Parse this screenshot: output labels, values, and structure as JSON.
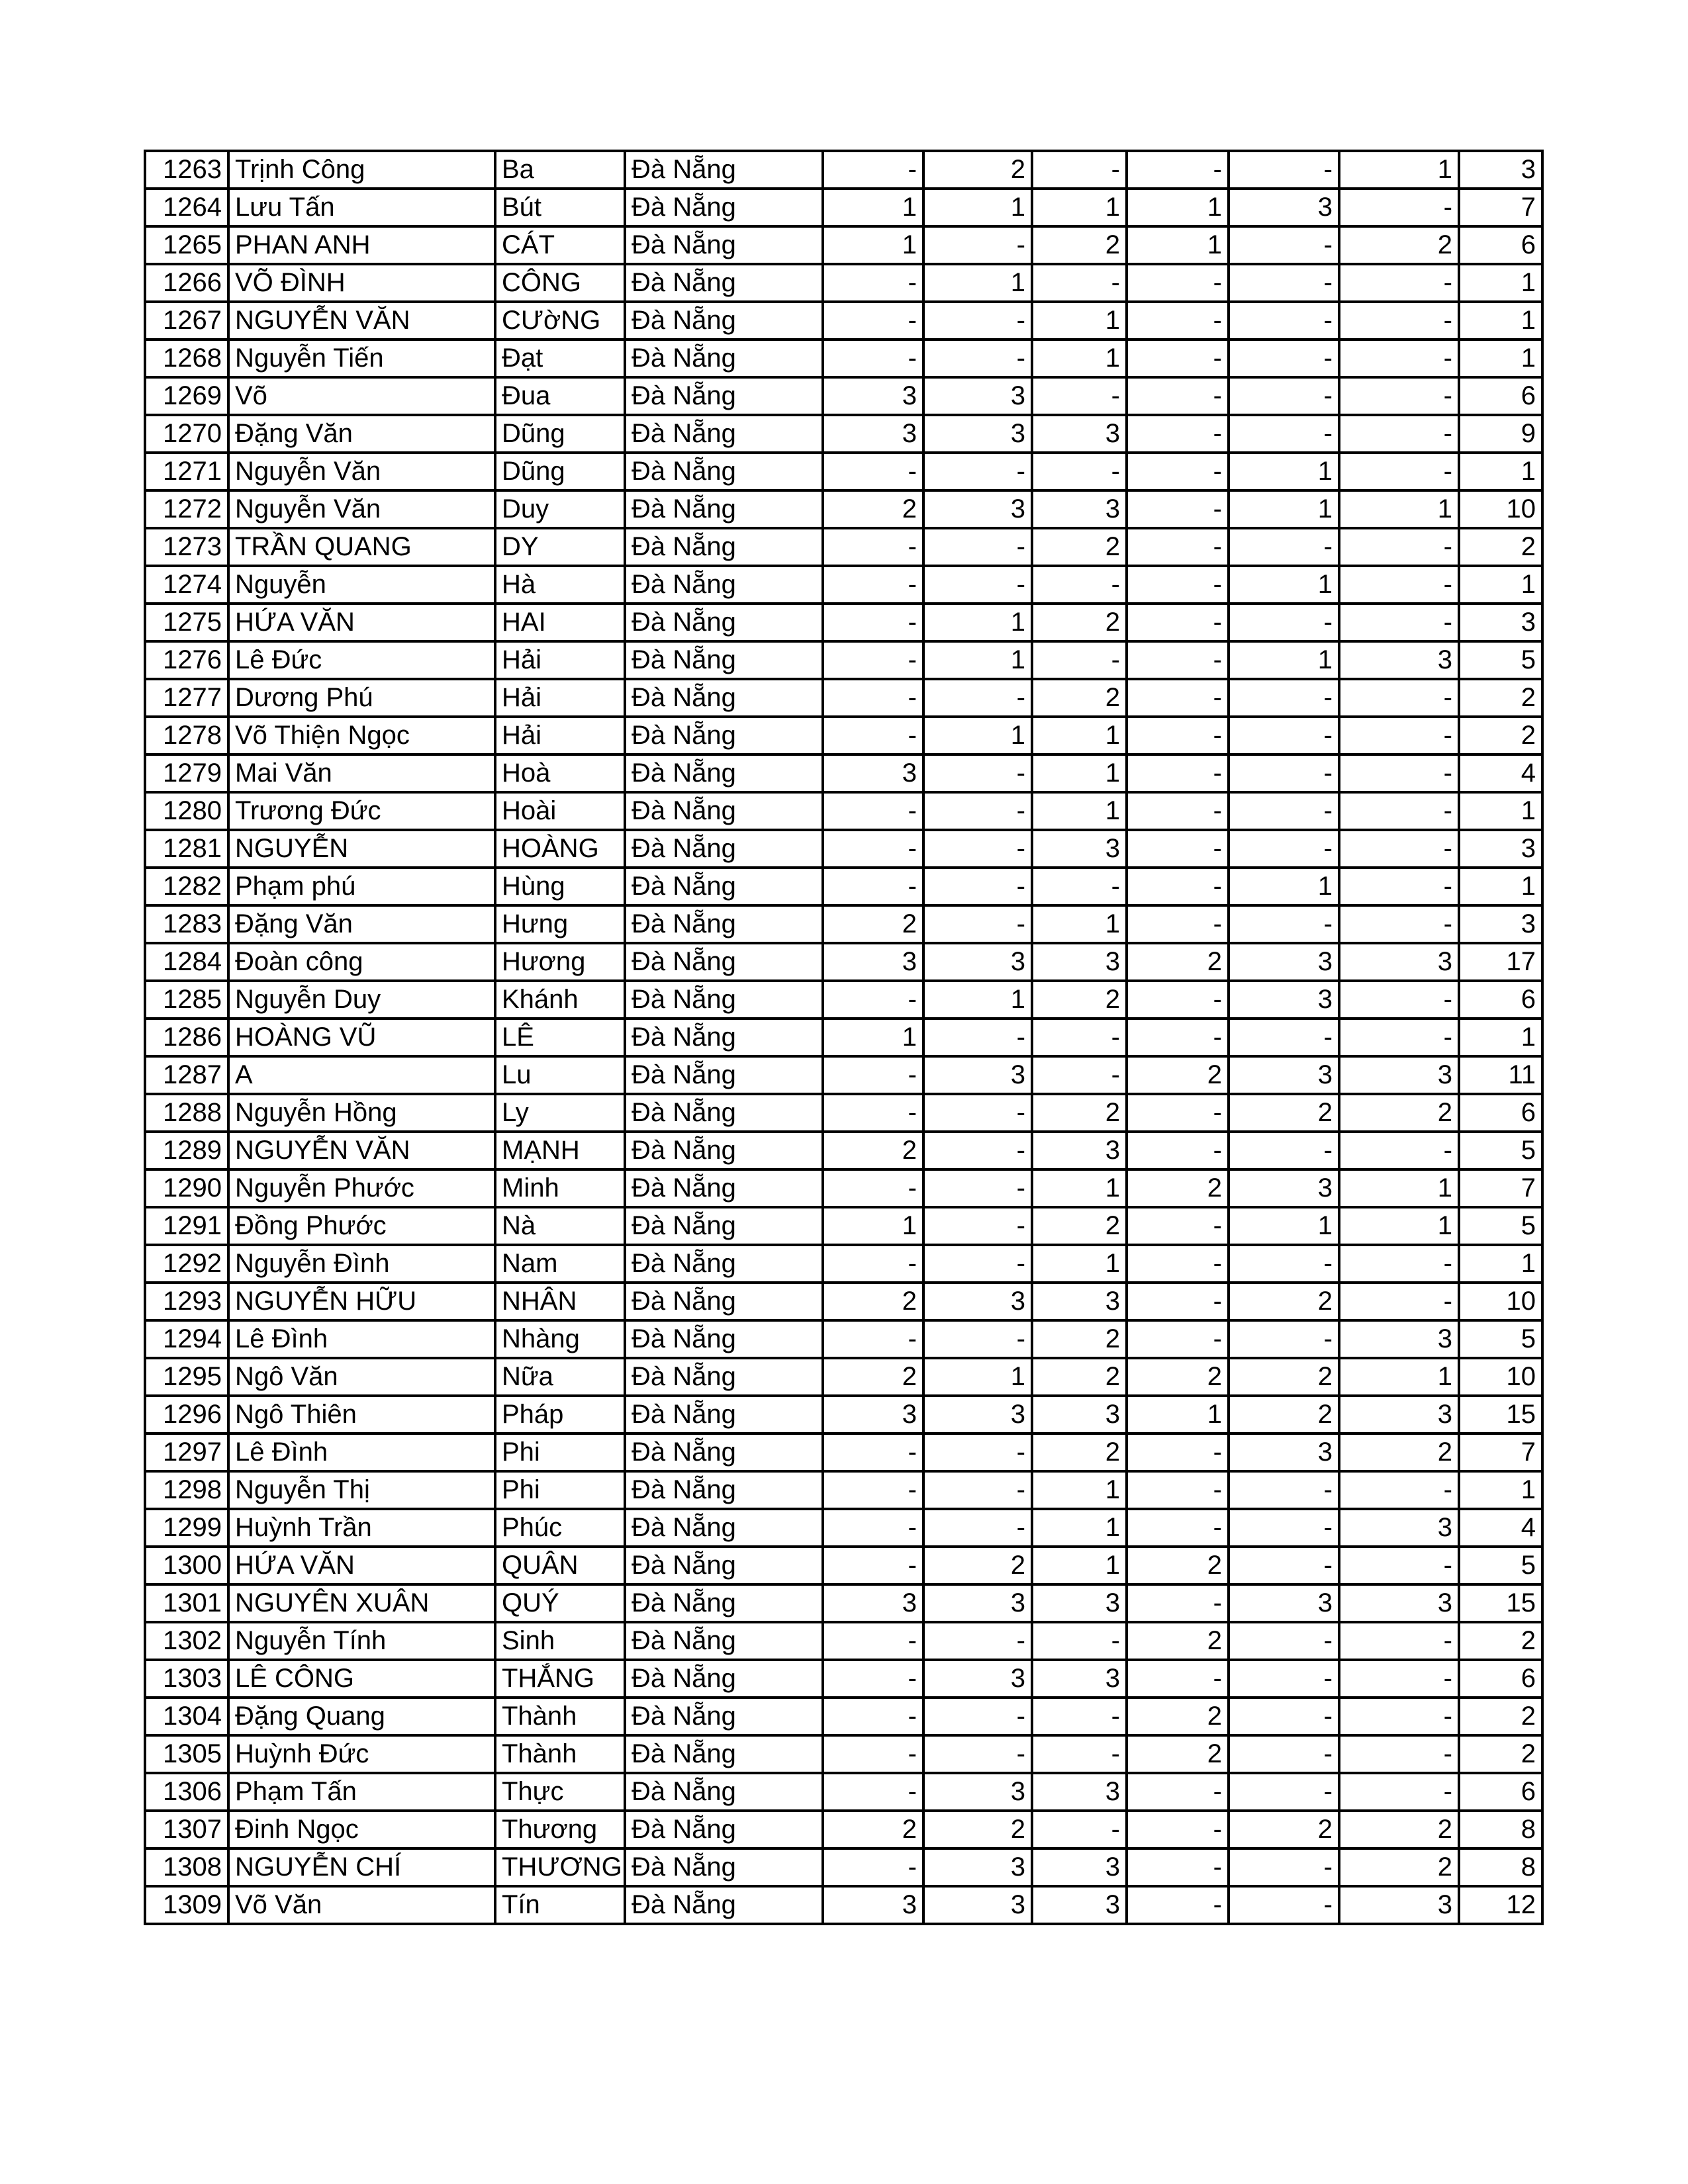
{
  "rows": [
    [
      "1263",
      "Trịnh Công",
      "Ba",
      "Đà Nẵng",
      "-",
      "2",
      "-",
      "-",
      "-",
      "1",
      "3"
    ],
    [
      "1264",
      "Lưu Tấn",
      "Bút",
      "Đà Nẵng",
      "1",
      "1",
      "1",
      "1",
      "3",
      "-",
      "7"
    ],
    [
      "1265",
      "PHAN ANH",
      "CÁT",
      "Đà Nẵng",
      "1",
      "-",
      "2",
      "1",
      "-",
      "2",
      "6"
    ],
    [
      "1266",
      "VÕ  ĐÌNH",
      "CÔNG",
      "Đà Nẵng",
      "-",
      "1",
      "-",
      "-",
      "-",
      "-",
      "1"
    ],
    [
      "1267",
      "NGUYỄN VĂN",
      "CƯờNG",
      "Đà Nẵng",
      "-",
      "-",
      "1",
      "-",
      "-",
      "-",
      "1"
    ],
    [
      "1268",
      "Nguyễn Tiến",
      "Đạt",
      "Đà Nẵng",
      "-",
      "-",
      "1",
      "-",
      "-",
      "-",
      "1"
    ],
    [
      "1269",
      "Võ",
      "Đua",
      "Đà Nẵng",
      "3",
      "3",
      "-",
      "-",
      "-",
      "-",
      "6"
    ],
    [
      "1270",
      "Đặng Văn",
      "Dũng",
      "Đà Nẵng",
      "3",
      "3",
      "3",
      "-",
      "-",
      "-",
      "9"
    ],
    [
      "1271",
      "Nguyễn Văn",
      "Dũng",
      "Đà Nẵng",
      "-",
      "-",
      "-",
      "-",
      "1",
      "-",
      "1"
    ],
    [
      "1272",
      "Nguyễn Văn",
      "Duy",
      "Đà Nẵng",
      "2",
      "3",
      "3",
      "-",
      "1",
      "1",
      "10"
    ],
    [
      "1273",
      "TRẦN QUANG",
      "DY",
      "Đà Nẵng",
      "-",
      "-",
      "2",
      "-",
      "-",
      "-",
      "2"
    ],
    [
      "1274",
      "Nguyễn",
      "Hà",
      "Đà Nẵng",
      "-",
      "-",
      "-",
      "-",
      "1",
      "-",
      "1"
    ],
    [
      "1275",
      "HỨA VĂN",
      "HAI",
      "Đà Nẵng",
      "-",
      "1",
      "2",
      "-",
      "-",
      "-",
      "3"
    ],
    [
      "1276",
      "Lê Đức",
      "Hải",
      "Đà Nẵng",
      "-",
      "1",
      "-",
      "-",
      "1",
      "3",
      "5"
    ],
    [
      "1277",
      "Dương Phú",
      "Hải",
      "Đà Nẵng",
      "-",
      "-",
      "2",
      "-",
      "-",
      "-",
      "2"
    ],
    [
      "1278",
      "Võ Thiện Ngọc",
      "Hải",
      "Đà Nẵng",
      "-",
      "1",
      "1",
      "-",
      "-",
      "-",
      "2"
    ],
    [
      "1279",
      "Mai Văn",
      "Hoà",
      "Đà Nẵng",
      "3",
      "-",
      "1",
      "-",
      "-",
      "-",
      "4"
    ],
    [
      "1280",
      "Trương Đức",
      "Hoài",
      "Đà Nẵng",
      "-",
      "-",
      "1",
      "-",
      "-",
      "-",
      "1"
    ],
    [
      "1281",
      "NGUYỄN",
      "HOÀNG",
      "Đà Nẵng",
      "-",
      "-",
      "3",
      "-",
      "-",
      "-",
      "3"
    ],
    [
      "1282",
      "Phạm phú",
      "Hùng",
      "Đà Nẵng",
      "-",
      "-",
      "-",
      "-",
      "1",
      "-",
      "1"
    ],
    [
      "1283",
      "Đặng Văn",
      "Hưng",
      "Đà Nẵng",
      "2",
      "-",
      "1",
      "-",
      "-",
      "-",
      "3"
    ],
    [
      "1284",
      "Đoàn công",
      "Hương",
      "Đà Nẵng",
      "3",
      "3",
      "3",
      "2",
      "3",
      "3",
      "17"
    ],
    [
      "1285",
      "Nguyễn Duy",
      "Khánh",
      "Đà Nẵng",
      "-",
      "1",
      "2",
      "-",
      "3",
      "-",
      "6"
    ],
    [
      "1286",
      "HOÀNG VŨ",
      "LÊ",
      "Đà Nẵng",
      "1",
      "-",
      "-",
      "-",
      "-",
      "-",
      "1"
    ],
    [
      "1287",
      "A",
      "Lu",
      "Đà Nẵng",
      "-",
      "3",
      "-",
      "2",
      "3",
      "3",
      "11"
    ],
    [
      "1288",
      "Nguyễn Hồng",
      "Ly",
      "Đà Nẵng",
      "-",
      "-",
      "2",
      "-",
      "2",
      "2",
      "6"
    ],
    [
      "1289",
      "NGUYỄN VĂN",
      "MẠNH",
      "Đà Nẵng",
      "2",
      "-",
      "3",
      "-",
      "-",
      "-",
      "5"
    ],
    [
      "1290",
      "Nguyễn Phước",
      "Minh",
      "Đà Nẵng",
      "-",
      "-",
      "1",
      "2",
      "3",
      "1",
      "7"
    ],
    [
      "1291",
      "Đồng Phước",
      "Nà",
      "Đà Nẵng",
      "1",
      "-",
      "2",
      "-",
      "1",
      "1",
      "5"
    ],
    [
      "1292",
      "Nguyễn Đình",
      "Nam",
      "Đà Nẵng",
      "-",
      "-",
      "1",
      "-",
      "-",
      "-",
      "1"
    ],
    [
      "1293",
      "NGUYỄN HỮU",
      "NHÂN",
      "Đà Nẵng",
      "2",
      "3",
      "3",
      "-",
      "2",
      "-",
      "10"
    ],
    [
      "1294",
      "Lê Đình",
      "Nhàng",
      "Đà Nẵng",
      "-",
      "-",
      "2",
      "-",
      "-",
      "3",
      "5"
    ],
    [
      "1295",
      "Ngô Văn",
      "Nữa",
      "Đà Nẵng",
      "2",
      "1",
      "2",
      "2",
      "2",
      "1",
      "10"
    ],
    [
      "1296",
      "Ngô Thiên",
      "Pháp",
      "Đà Nẵng",
      "3",
      "3",
      "3",
      "1",
      "2",
      "3",
      "15"
    ],
    [
      "1297",
      "Lê Đình",
      "Phi",
      "Đà Nẵng",
      "-",
      "-",
      "2",
      "-",
      "3",
      "2",
      "7"
    ],
    [
      "1298",
      "Nguyễn Thị",
      "Phi",
      "Đà Nẵng",
      "-",
      "-",
      "1",
      "-",
      "-",
      "-",
      "1"
    ],
    [
      "1299",
      "Huỳnh Trần",
      "Phúc",
      "Đà Nẵng",
      "-",
      "-",
      "1",
      "-",
      "-",
      "3",
      "4"
    ],
    [
      "1300",
      "HỨA VĂN",
      "QUÂN",
      "Đà Nẵng",
      "-",
      "2",
      "1",
      "2",
      "-",
      "-",
      "5"
    ],
    [
      "1301",
      "NGUYÊN XUÂN",
      "QUÝ",
      "Đà Nẵng",
      "3",
      "3",
      "3",
      "-",
      "3",
      "3",
      "15"
    ],
    [
      "1302",
      "Nguyễn Tính",
      "Sinh",
      "Đà Nẵng",
      "-",
      "-",
      "-",
      "2",
      "-",
      "-",
      "2"
    ],
    [
      "1303",
      "LÊ CÔNG",
      "THẮNG",
      "Đà Nẵng",
      "-",
      "3",
      "3",
      "-",
      "-",
      "-",
      "6"
    ],
    [
      "1304",
      "Đặng Quang",
      "Thành",
      "Đà Nẵng",
      "-",
      "-",
      "-",
      "2",
      "-",
      "-",
      "2"
    ],
    [
      "1305",
      "Huỳnh Đức",
      "Thành",
      "Đà Nẵng",
      "-",
      "-",
      "-",
      "2",
      "-",
      "-",
      "2"
    ],
    [
      "1306",
      "Phạm Tấn",
      "Thực",
      "Đà Nẵng",
      "-",
      "3",
      "3",
      "-",
      "-",
      "-",
      "6"
    ],
    [
      "1307",
      "Đinh Ngọc",
      "Thương",
      "Đà Nẵng",
      "2",
      "2",
      "-",
      "-",
      "2",
      "2",
      "8"
    ],
    [
      "1308",
      "NGUYỄN CHÍ",
      "THƯƠNG",
      "Đà Nẵng",
      "-",
      "3",
      "3",
      "-",
      "-",
      "2",
      "8"
    ],
    [
      "1309",
      "Võ Văn",
      "Tín",
      "Đà Nẵng",
      "3",
      "3",
      "3",
      "-",
      "-",
      "3",
      "12"
    ]
  ]
}
